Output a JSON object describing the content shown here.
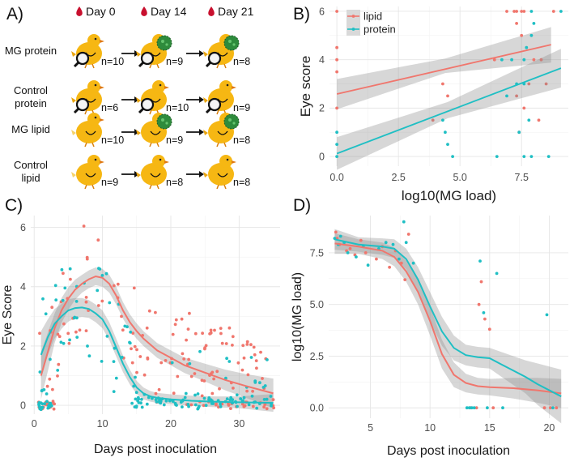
{
  "panels": {
    "a": {
      "label": "A)",
      "days": [
        "Day 0",
        "Day 14",
        "Day 21"
      ],
      "groups": [
        {
          "name": "MG protein",
          "counts": [
            "n=10",
            "n=9",
            "n=8"
          ],
          "lens": [
            true,
            true,
            true
          ],
          "virus": [
            false,
            true,
            true
          ],
          "yellow_tail": [
            false,
            false,
            false
          ]
        },
        {
          "name": "Control protein",
          "name_lines": [
            "Control",
            "protein"
          ],
          "counts": [
            "n=6",
            "n=10",
            "n=9"
          ],
          "lens": [
            true,
            true,
            true
          ],
          "virus": [
            false,
            false,
            false
          ],
          "yellow_tail": [
            false,
            false,
            false
          ]
        },
        {
          "name": "MG lipid",
          "counts": [
            "n=10",
            "n=9",
            "n=8"
          ],
          "lens": [
            false,
            false,
            false
          ],
          "virus": [
            false,
            true,
            true
          ],
          "yellow_tail": [
            true,
            false,
            false
          ]
        },
        {
          "name": "Control lipid",
          "name_lines": [
            "Control",
            "lipid"
          ],
          "counts": [
            "n=9",
            "n=8",
            "n=8"
          ],
          "lens": [
            false,
            false,
            false
          ],
          "virus": [
            false,
            false,
            false
          ],
          "yellow_tail": [
            true,
            false,
            false
          ]
        }
      ]
    },
    "b": {
      "label": "B)"
    },
    "c": {
      "label": "C)"
    },
    "d": {
      "label": "D)"
    }
  },
  "chart_data": [
    {
      "id": "B",
      "type": "scatter",
      "xlabel": "log10(MG load)",
      "ylabel": "Eye score",
      "xlim": [
        -0.3,
        9.4
      ],
      "ylim": [
        -0.4,
        6.2
      ],
      "xticks": [
        0,
        2.5,
        5,
        7.5
      ],
      "xtick_labels": [
        "0.0",
        "2.5",
        "5.0",
        "7.5"
      ],
      "yticks": [
        0,
        2,
        4,
        6
      ],
      "ytick_labels": [
        "0",
        "2",
        "4",
        "6"
      ],
      "legend": {
        "position": "top-left",
        "entries": [
          "lipid",
          "protein"
        ]
      },
      "series": [
        {
          "name": "lipid",
          "color": "#F0766D",
          "points": [
            [
              0,
              6
            ],
            [
              0,
              4.5
            ],
            [
              0,
              4
            ],
            [
              0,
              3.5
            ],
            [
              0,
              2
            ],
            [
              6.9,
              6
            ],
            [
              7.2,
              6
            ],
            [
              7.3,
              6
            ],
            [
              7.5,
              6
            ],
            [
              7.6,
              6
            ],
            [
              8.8,
              6
            ],
            [
              7.3,
              5.5
            ],
            [
              7.5,
              5
            ],
            [
              4.3,
              3
            ],
            [
              4.5,
              2.5
            ],
            [
              3.9,
              1.5
            ],
            [
              7.8,
              3
            ],
            [
              8.0,
              4
            ],
            [
              8.3,
              4
            ],
            [
              8.5,
              3
            ],
            [
              7.6,
              2
            ],
            [
              6.4,
              4
            ],
            [
              7.3,
              2.5
            ],
            [
              8.2,
              1.5
            ],
            [
              7.4,
              1
            ]
          ],
          "fit": {
            "x0": 0,
            "y0": 2.58,
            "x1": 8.7,
            "y1": 4.62
          },
          "band": {
            "lower": [
              [
                0,
                1.95
              ],
              [
                4.4,
                3.45
              ],
              [
                8.7,
                3.88
              ]
            ],
            "upper": [
              [
                0,
                3.2
              ],
              [
                4.4,
                4.05
              ],
              [
                8.7,
                5.35
              ]
            ]
          }
        },
        {
          "name": "protein",
          "color": "#1FBFC4",
          "points": [
            [
              0,
              1
            ],
            [
              0,
              0.5
            ],
            [
              0,
              0
            ],
            [
              4.4,
              1
            ],
            [
              4.5,
              0.5
            ],
            [
              4.3,
              1.5
            ],
            [
              4.7,
              0
            ],
            [
              6.5,
              0
            ],
            [
              7.6,
              0
            ],
            [
              7.9,
              0
            ],
            [
              8.6,
              0
            ],
            [
              6.9,
              2.5
            ],
            [
              7.3,
              3
            ],
            [
              7.6,
              3
            ],
            [
              7.8,
              1.5
            ],
            [
              7.4,
              1
            ],
            [
              7.1,
              4
            ],
            [
              7.6,
              4
            ],
            [
              7.7,
              4.5
            ],
            [
              7.9,
              5
            ],
            [
              8.0,
              5.5
            ],
            [
              7.9,
              6
            ],
            [
              9.1,
              6
            ],
            [
              6.7,
              4
            ]
          ],
          "fit": {
            "x0": 0,
            "y0": 0.12,
            "x1": 9.1,
            "y1": 3.65
          },
          "band": {
            "lower": [
              [
                0,
                -0.55
              ],
              [
                4.5,
                1.58
              ],
              [
                9.1,
                2.85
              ]
            ],
            "upper": [
              [
                0,
                0.8
              ],
              [
                4.5,
                2.25
              ],
              [
                9.1,
                4.45
              ]
            ]
          }
        }
      ]
    },
    {
      "id": "C",
      "type": "scatter",
      "xlabel": "Days post inoculation",
      "ylabel": "Eye Score",
      "xlim": [
        -0.5,
        36
      ],
      "ylim": [
        -0.3,
        6.4
      ],
      "xticks": [
        0,
        10,
        20,
        30
      ],
      "xtick_labels": [
        "0",
        "10",
        "20",
        "30"
      ],
      "yticks": [
        0,
        2,
        4,
        6
      ],
      "ytick_labels": [
        "0",
        "2",
        "4",
        "6"
      ],
      "series": [
        {
          "name": "lipid",
          "color": "#F0766D",
          "smooth": [
            [
              1,
              1.0
            ],
            [
              2,
              1.8
            ],
            [
              3,
              2.6
            ],
            [
              4,
              3.2
            ],
            [
              5,
              3.6
            ],
            [
              6,
              3.9
            ],
            [
              7,
              4.1
            ],
            [
              8,
              4.25
            ],
            [
              9,
              4.35
            ],
            [
              10,
              4.3
            ],
            [
              11,
              4.1
            ],
            [
              12,
              3.7
            ],
            [
              13,
              3.2
            ],
            [
              14,
              2.8
            ],
            [
              15,
              2.5
            ],
            [
              16,
              2.25
            ],
            [
              17,
              2.05
            ],
            [
              18,
              1.85
            ],
            [
              20,
              1.6
            ],
            [
              22,
              1.35
            ],
            [
              25,
              1.1
            ],
            [
              28,
              0.85
            ],
            [
              31,
              0.65
            ],
            [
              35,
              0.4
            ]
          ],
          "band_half": [
            0.8,
            0.65,
            0.5,
            0.42,
            0.38,
            0.34,
            0.3,
            0.3,
            0.3,
            0.3,
            0.3,
            0.3,
            0.28,
            0.27,
            0.26,
            0.25,
            0.25,
            0.25,
            0.25,
            0.26,
            0.3,
            0.35,
            0.4,
            0.5
          ]
        },
        {
          "name": "protein",
          "color": "#1FBFC4",
          "smooth": [
            [
              1,
              1.7
            ],
            [
              2,
              2.3
            ],
            [
              3,
              2.75
            ],
            [
              4,
              3.0
            ],
            [
              5,
              3.2
            ],
            [
              6,
              3.28
            ],
            [
              7,
              3.3
            ],
            [
              8,
              3.25
            ],
            [
              9,
              3.1
            ],
            [
              10,
              2.9
            ],
            [
              11,
              2.5
            ],
            [
              12,
              1.95
            ],
            [
              13,
              1.4
            ],
            [
              14,
              0.95
            ],
            [
              15,
              0.6
            ],
            [
              16,
              0.4
            ],
            [
              17,
              0.3
            ],
            [
              18,
              0.25
            ],
            [
              20,
              0.2
            ],
            [
              23,
              0.15
            ],
            [
              26,
              0.12
            ],
            [
              30,
              0.1
            ],
            [
              35,
              0.08
            ]
          ],
          "band_half": [
            0.8,
            0.6,
            0.5,
            0.42,
            0.38,
            0.34,
            0.32,
            0.3,
            0.3,
            0.3,
            0.3,
            0.3,
            0.28,
            0.25,
            0.22,
            0.2,
            0.18,
            0.17,
            0.17,
            0.17,
            0.18,
            0.2,
            0.3
          ]
        }
      ]
    },
    {
      "id": "D",
      "type": "scatter",
      "xlabel": "Days post inoculation",
      "ylabel": "log10(MG load)",
      "xlim": [
        1.5,
        21.6
      ],
      "ylim": [
        -0.5,
        9.3
      ],
      "xticks": [
        5,
        10,
        15,
        20
      ],
      "xtick_labels": [
        "5",
        "10",
        "15",
        "20"
      ],
      "yticks": [
        0,
        2.5,
        5,
        7.5
      ],
      "ytick_labels": [
        "0.0",
        "2.5",
        "5.0",
        "7.5"
      ],
      "series": [
        {
          "name": "lipid",
          "color": "#F0766D",
          "points": [
            [
              2.1,
              8.5
            ],
            [
              2.2,
              8.2
            ],
            [
              2.4,
              7.9
            ],
            [
              3.0,
              7.6
            ],
            [
              3.3,
              7.7
            ],
            [
              3.7,
              7.4
            ],
            [
              4.2,
              8.1
            ],
            [
              4.6,
              7.5
            ],
            [
              5.5,
              7.2
            ],
            [
              6.0,
              7.8
            ],
            [
              6.6,
              6.8
            ],
            [
              7.1,
              7.6
            ],
            [
              7.6,
              7.0
            ],
            [
              8.2,
              8.4
            ],
            [
              7.9,
              6.2
            ],
            [
              13.4,
              0
            ],
            [
              13.9,
              0
            ],
            [
              14.1,
              5.0
            ],
            [
              14.3,
              6.1
            ],
            [
              14.6,
              4.3
            ],
            [
              15.0,
              3.8
            ],
            [
              15.3,
              0
            ],
            [
              19.6,
              0
            ],
            [
              20.1,
              0
            ],
            [
              20.6,
              0
            ]
          ],
          "smooth": [
            [
              2,
              7.95
            ],
            [
              4,
              7.8
            ],
            [
              6,
              7.6
            ],
            [
              7,
              7.3
            ],
            [
              8,
              6.6
            ],
            [
              9,
              5.6
            ],
            [
              10,
              4.2
            ],
            [
              11,
              2.6
            ],
            [
              12,
              1.6
            ],
            [
              13,
              1.2
            ],
            [
              14,
              1.05
            ],
            [
              15,
              1.0
            ],
            [
              17,
              0.95
            ],
            [
              19,
              0.85
            ],
            [
              21,
              0.7
            ]
          ],
          "band_half": [
            0.5,
            0.35,
            0.4,
            0.45,
            0.5,
            0.6,
            0.7,
            0.7,
            0.6,
            0.45,
            0.4,
            0.4,
            0.5,
            0.6,
            0.7
          ]
        },
        {
          "name": "protein",
          "color": "#1FBFC4",
          "points": [
            [
              2.0,
              8.2
            ],
            [
              2.3,
              7.9
            ],
            [
              2.5,
              8.3
            ],
            [
              2.8,
              8.0
            ],
            [
              3.1,
              7.5
            ],
            [
              3.8,
              7.3
            ],
            [
              4.4,
              7.8
            ],
            [
              4.8,
              6.9
            ],
            [
              5.7,
              7.7
            ],
            [
              6.3,
              8.0
            ],
            [
              6.9,
              7.9
            ],
            [
              7.4,
              7.2
            ],
            [
              8.0,
              8.0
            ],
            [
              8.6,
              7.0
            ],
            [
              7.8,
              9.0
            ],
            [
              13.1,
              0
            ],
            [
              13.3,
              0
            ],
            [
              13.5,
              0
            ],
            [
              13.7,
              0
            ],
            [
              14.2,
              7.1
            ],
            [
              14.5,
              4.6
            ],
            [
              15.6,
              6.5
            ],
            [
              14.8,
              0
            ],
            [
              16.1,
              0
            ],
            [
              19.8,
              4.5
            ],
            [
              20.3,
              0
            ]
          ],
          "smooth": [
            [
              2,
              8.15
            ],
            [
              4,
              7.9
            ],
            [
              6,
              7.8
            ],
            [
              7,
              7.7
            ],
            [
              8,
              7.2
            ],
            [
              9,
              6.2
            ],
            [
              10,
              4.9
            ],
            [
              11,
              3.7
            ],
            [
              12,
              2.9
            ],
            [
              13,
              2.55
            ],
            [
              14,
              2.45
            ],
            [
              15,
              2.4
            ],
            [
              16,
              2.1
            ],
            [
              18,
              1.5
            ],
            [
              19,
              1.15
            ],
            [
              21,
              0.55
            ]
          ],
          "band_half": [
            0.5,
            0.35,
            0.4,
            0.45,
            0.5,
            0.6,
            0.7,
            0.7,
            0.6,
            0.5,
            0.5,
            0.5,
            0.6,
            0.8,
            1.0,
            1.3
          ]
        }
      ]
    }
  ]
}
